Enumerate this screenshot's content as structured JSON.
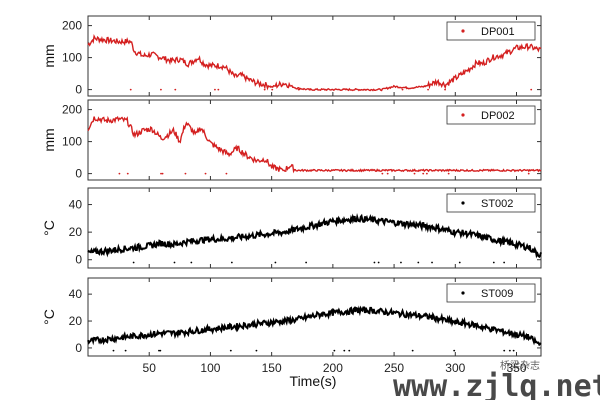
{
  "chart_data": [
    {
      "type": "line",
      "legend": "DP001",
      "legend_position": "top-right",
      "ylabel": "mm",
      "yticks": [
        0,
        100,
        200
      ],
      "ylim": [
        -20,
        230
      ],
      "xlim": [
        0,
        370
      ],
      "color": "#d42020",
      "x": [
        0,
        5,
        15,
        25,
        35,
        38,
        45,
        52,
        60,
        68,
        75,
        82,
        90,
        95,
        100,
        108,
        112,
        120,
        125,
        132,
        138,
        145,
        150,
        160,
        170,
        180,
        195,
        210,
        225,
        240,
        250,
        262,
        275,
        285,
        292,
        300,
        310,
        318,
        322,
        330,
        340,
        350,
        360,
        368
      ],
      "y": [
        140,
        160,
        155,
        150,
        150,
        120,
        105,
        110,
        100,
        90,
        95,
        80,
        100,
        80,
        75,
        75,
        70,
        40,
        45,
        30,
        20,
        15,
        8,
        20,
        5,
        0,
        0,
        0,
        0,
        0,
        10,
        5,
        10,
        25,
        15,
        35,
        60,
        85,
        80,
        100,
        110,
        130,
        135,
        125
      ]
    },
    {
      "type": "line",
      "legend": "DP002",
      "legend_position": "top-right",
      "ylabel": "mm",
      "yticks": [
        0,
        100,
        200
      ],
      "ylim": [
        -20,
        230
      ],
      "xlim": [
        0,
        370
      ],
      "color": "#d42020",
      "x": [
        0,
        5,
        15,
        25,
        32,
        38,
        45,
        52,
        60,
        65,
        70,
        75,
        80,
        88,
        92,
        100,
        108,
        115,
        122,
        130,
        138,
        145,
        150,
        155,
        160,
        165,
        170,
        180,
        200,
        250,
        300,
        368
      ],
      "y": [
        140,
        175,
        165,
        170,
        165,
        120,
        135,
        140,
        110,
        120,
        135,
        100,
        160,
        120,
        145,
        95,
        75,
        60,
        80,
        55,
        40,
        45,
        20,
        15,
        10,
        25,
        10,
        10,
        10,
        10,
        10,
        10
      ]
    },
    {
      "type": "line",
      "legend": "ST002",
      "legend_position": "top-right",
      "ylabel": "°C",
      "yticks": [
        0,
        20,
        40
      ],
      "ylim": [
        -6,
        52
      ],
      "xlim": [
        0,
        370
      ],
      "color": "#000000",
      "x": [
        0,
        10,
        20,
        30,
        40,
        50,
        60,
        70,
        80,
        90,
        100,
        110,
        120,
        130,
        140,
        150,
        160,
        170,
        180,
        190,
        200,
        210,
        220,
        230,
        240,
        250,
        260,
        270,
        280,
        290,
        300,
        310,
        320,
        330,
        340,
        350,
        360,
        368
      ],
      "y": [
        5,
        6,
        7,
        8,
        9,
        10,
        12,
        11,
        13,
        14,
        15,
        15,
        16,
        17,
        18,
        19,
        20,
        22,
        24,
        26,
        28,
        29,
        30,
        29,
        28,
        27,
        26,
        25,
        24,
        22,
        20,
        19,
        17,
        15,
        13,
        11,
        9,
        4
      ]
    },
    {
      "type": "line",
      "legend": "ST009",
      "legend_position": "top-right",
      "ylabel": "°C",
      "yticks": [
        0,
        20,
        40
      ],
      "ylim": [
        -6,
        52
      ],
      "xlim": [
        0,
        370
      ],
      "color": "#000000",
      "x": [
        0,
        10,
        20,
        30,
        40,
        50,
        60,
        70,
        80,
        90,
        100,
        110,
        120,
        130,
        140,
        150,
        160,
        170,
        180,
        190,
        200,
        210,
        220,
        230,
        240,
        250,
        260,
        270,
        280,
        290,
        300,
        310,
        320,
        330,
        340,
        350,
        360,
        368
      ],
      "y": [
        5,
        6,
        7,
        8,
        9,
        10,
        11,
        11,
        12,
        13,
        14,
        15,
        16,
        17,
        18,
        19,
        20,
        21,
        23,
        25,
        26,
        27,
        28,
        28,
        27,
        26,
        25,
        24,
        23,
        21,
        19,
        18,
        16,
        14,
        12,
        10,
        8,
        3
      ]
    }
  ],
  "xaxis": {
    "label": "Time(s)",
    "ticks": [
      50,
      100,
      150,
      200,
      250,
      300,
      350
    ],
    "xlim": [
      0,
      370
    ]
  },
  "watermark": {
    "text": "www.zjlq.net",
    "small_text": "桥梁杂志"
  }
}
